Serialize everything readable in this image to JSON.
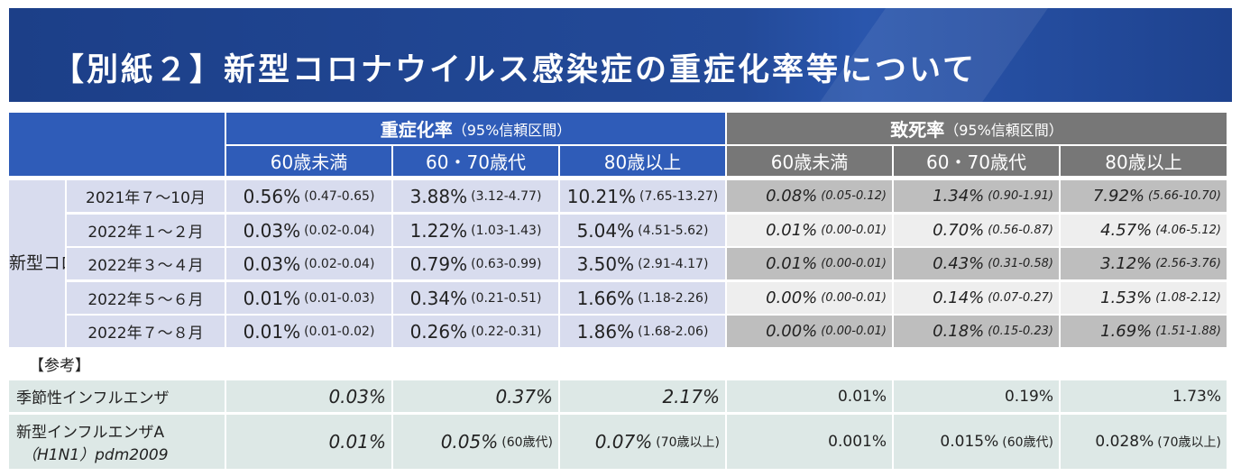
{
  "title": "【別紙２】新型コロナウイルス感染症の重症化率等について",
  "severe_header": {
    "main": "重症化率",
    "sub": "（95%信頼区間）"
  },
  "fatal_header": {
    "main": "致死率",
    "sub": "（95%信頼区間）"
  },
  "age_groups": [
    "60歳未満",
    "60・70歳代",
    "80歳以上"
  ],
  "covid_label": "新型コロナ",
  "covid_rows": [
    {
      "period": "2021年７～10月",
      "severe": [
        [
          "0.56%",
          "(0.47-0.65)"
        ],
        [
          "3.88%",
          "(3.12-4.77)"
        ],
        [
          "10.21%",
          "(7.65-13.27)"
        ]
      ],
      "fatal": [
        [
          "0.08%",
          "(0.05-0.12)"
        ],
        [
          "1.34%",
          "(0.90-1.91)"
        ],
        [
          "7.92%",
          "(5.66-10.70)"
        ]
      ]
    },
    {
      "period": "2022年１～２月",
      "severe": [
        [
          "0.03%",
          "(0.02-0.04)"
        ],
        [
          "1.22%",
          "(1.03-1.43)"
        ],
        [
          "5.04%",
          "(4.51-5.62)"
        ]
      ],
      "fatal": [
        [
          "0.01%",
          "(0.00-0.01)"
        ],
        [
          "0.70%",
          "(0.56-0.87)"
        ],
        [
          "4.57%",
          "(4.06-5.12)"
        ]
      ]
    },
    {
      "period": "2022年３～４月",
      "severe": [
        [
          "0.03%",
          "(0.02-0.04)"
        ],
        [
          "0.79%",
          "(0.63-0.99)"
        ],
        [
          "3.50%",
          "(2.91-4.17)"
        ]
      ],
      "fatal": [
        [
          "0.01%",
          "(0.00-0.01)"
        ],
        [
          "0.43%",
          "(0.31-0.58)"
        ],
        [
          "3.12%",
          "(2.56-3.76)"
        ]
      ]
    },
    {
      "period": "2022年５～６月",
      "severe": [
        [
          "0.01%",
          "(0.01-0.03)"
        ],
        [
          "0.34%",
          "(0.21-0.51)"
        ],
        [
          "1.66%",
          "(1.18-2.26)"
        ]
      ],
      "fatal": [
        [
          "0.00%",
          "(0.00-0.01)"
        ],
        [
          "0.14%",
          "(0.07-0.27)"
        ],
        [
          "1.53%",
          "(1.08-2.12)"
        ]
      ]
    },
    {
      "period": "2022年７～８月",
      "severe": [
        [
          "0.01%",
          "(0.01-0.02)"
        ],
        [
          "0.26%",
          "(0.22-0.31)"
        ],
        [
          "1.86%",
          "(1.68-2.06)"
        ]
      ],
      "fatal": [
        [
          "0.00%",
          "(0.00-0.01)"
        ],
        [
          "0.18%",
          "(0.15-0.23)"
        ],
        [
          "1.69%",
          "(1.51-1.88)"
        ]
      ]
    }
  ],
  "reference_label": "【参考】",
  "reference_rows": [
    {
      "label": [
        "季節性インフルエンザ"
      ],
      "severe": [
        [
          "0.03%",
          ""
        ],
        [
          "0.37%",
          ""
        ],
        [
          "2.17%",
          ""
        ]
      ],
      "fatal": [
        [
          "0.01%",
          ""
        ],
        [
          "0.19%",
          ""
        ],
        [
          "1.73%",
          ""
        ]
      ]
    },
    {
      "label": [
        "新型インフルエンザA",
        "（H1N1）pdm2009"
      ],
      "severe": [
        [
          "0.01%",
          ""
        ],
        [
          "0.05%",
          "(60歳代)"
        ],
        [
          "0.07%",
          "(70歳以上)"
        ]
      ],
      "fatal": [
        [
          "0.001%",
          ""
        ],
        [
          "0.015%",
          "(60歳代)"
        ],
        [
          "0.028%",
          "(70歳以上)"
        ]
      ]
    }
  ]
}
